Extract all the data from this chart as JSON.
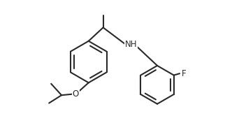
{
  "bg_color": "#ffffff",
  "line_color": "#2a2a2a",
  "line_width": 1.5,
  "label_NH": "NH",
  "label_O": "O",
  "label_F": "F",
  "label_fontsize": 8.5,
  "figsize": [
    3.22,
    1.86
  ],
  "dpi": 100,
  "xlim": [
    0,
    10
  ],
  "ylim": [
    0,
    6.2
  ]
}
